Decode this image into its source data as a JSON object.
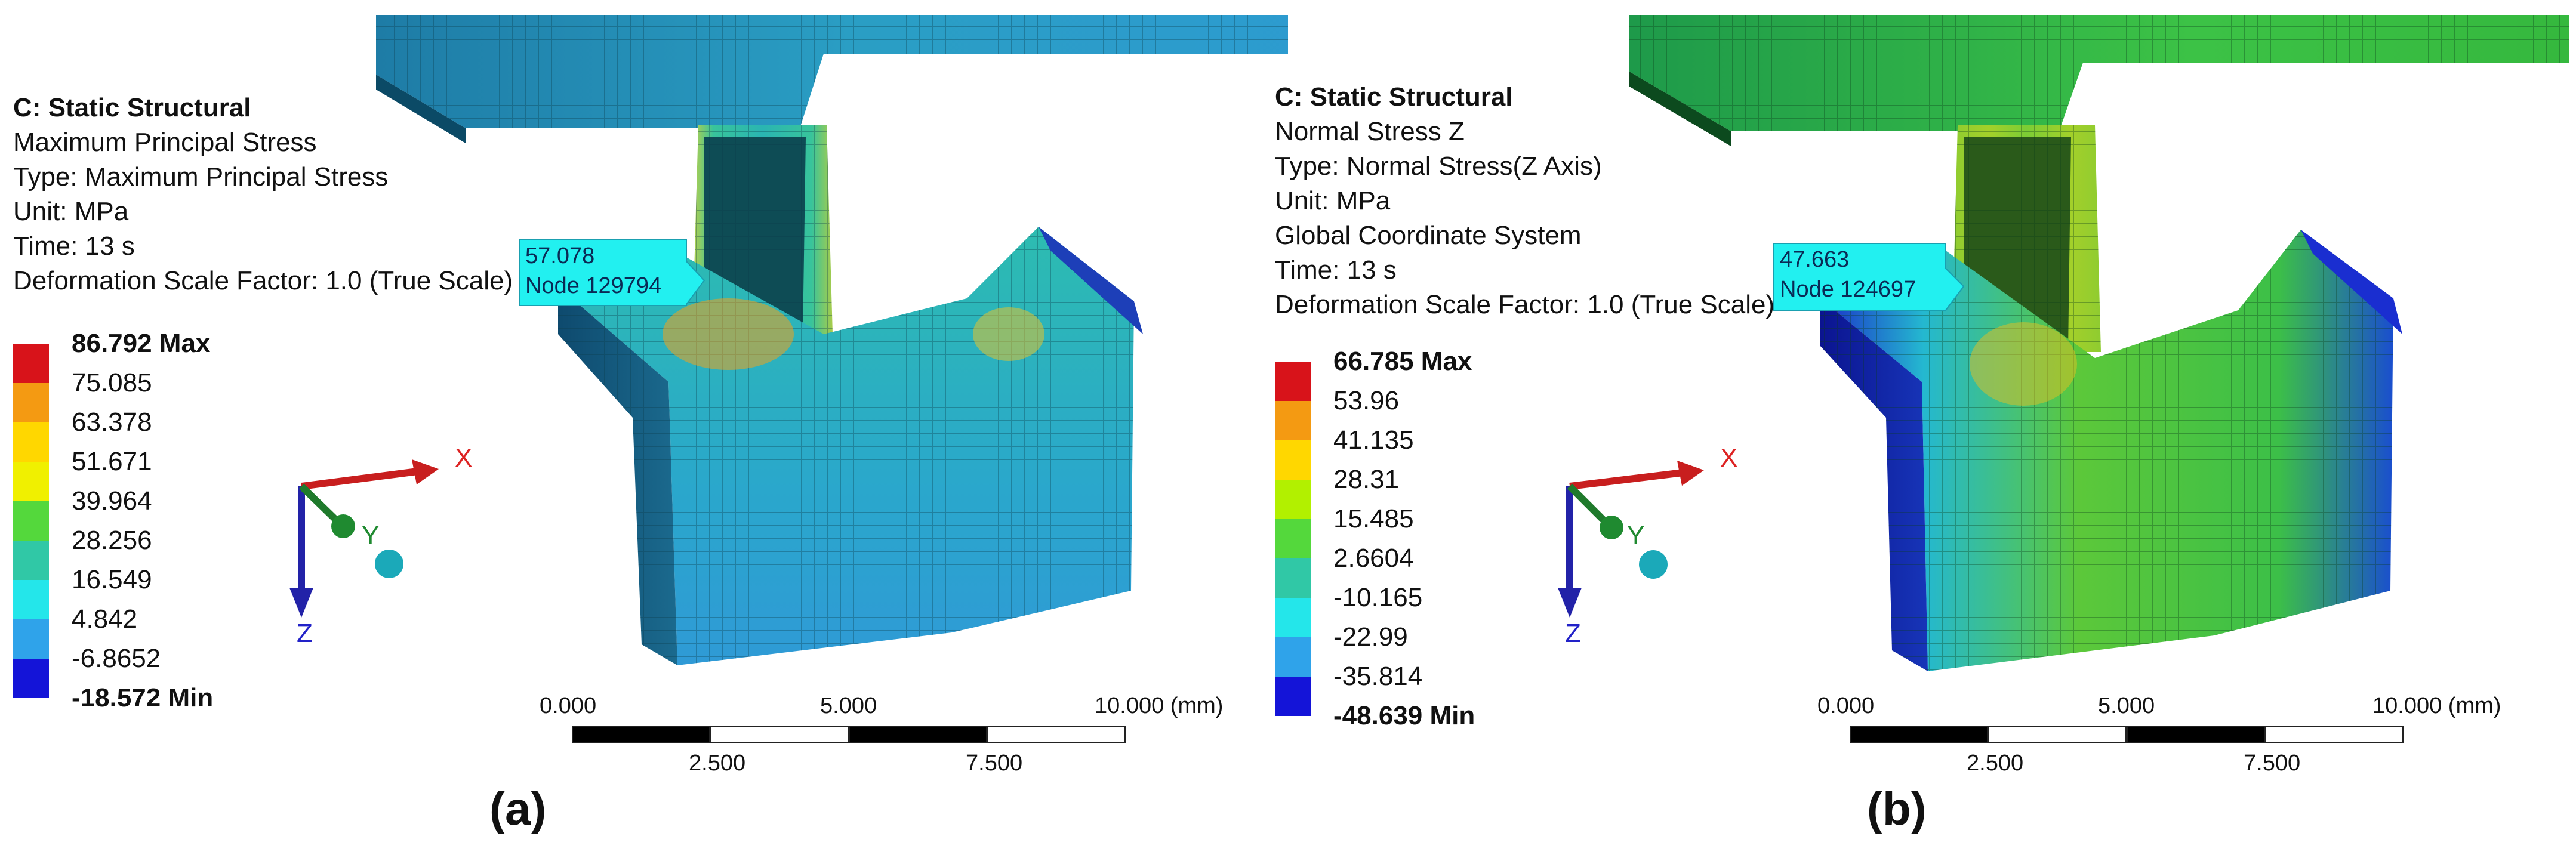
{
  "panels": [
    {
      "id": "a",
      "caption": "(a)",
      "info": {
        "title": "C: Static Structural",
        "result": "Maximum Principal Stress",
        "type": "Type: Maximum Principal Stress",
        "unit": "Unit: MPa",
        "coord_system": "",
        "time": "Time: 13 s",
        "scale": "Deformation Scale Factor: 1.0 (True Scale)"
      },
      "probe": {
        "value": "57.078",
        "node": "Node 129794"
      },
      "legend": {
        "max": "86.792 Max",
        "values": [
          "75.085",
          "63.378",
          "51.671",
          "39.964",
          "28.256",
          "16.549",
          "4.842",
          "-6.8652"
        ],
        "min": "-18.572 Min",
        "colors": [
          "#d8131a",
          "#f49a12",
          "#ffd700",
          "#f0f000",
          "#54d83c",
          "#30c8a6",
          "#24e6ea",
          "#2fa3ea",
          "#1414d8"
        ]
      },
      "scale_bar": {
        "top_ticks": [
          "0.000",
          "5.000",
          "10.000 (mm)"
        ],
        "bottom_ticks": [
          "2.500",
          "7.500"
        ]
      },
      "triad": {
        "x": "X",
        "y": "Y",
        "z": "Z"
      }
    },
    {
      "id": "b",
      "caption": "(b)",
      "info": {
        "title": "C: Static Structural",
        "result": "Normal Stress Z",
        "type": "Type: Normal Stress(Z Axis)",
        "unit": "Unit: MPa",
        "coord_system": "Global Coordinate System",
        "time": "Time: 13 s",
        "scale": "Deformation Scale Factor: 1.0 (True Scale)"
      },
      "probe": {
        "value": "47.663",
        "node": "Node 124697"
      },
      "legend": {
        "max": "66.785 Max",
        "values": [
          "53.96",
          "41.135",
          "28.31",
          "15.485",
          "2.6604",
          "-10.165",
          "-22.99",
          "-35.814"
        ],
        "min": "-48.639 Min",
        "colors": [
          "#d8131a",
          "#f49a12",
          "#ffd700",
          "#b2f000",
          "#54d83c",
          "#30c8a6",
          "#24e6ea",
          "#2fa3ea",
          "#1414d8"
        ]
      },
      "scale_bar": {
        "top_ticks": [
          "0.000",
          "5.000",
          "10.000 (mm)"
        ],
        "bottom_ticks": [
          "2.500",
          "7.500"
        ]
      },
      "triad": {
        "x": "X",
        "y": "Y",
        "z": "Z"
      }
    }
  ]
}
